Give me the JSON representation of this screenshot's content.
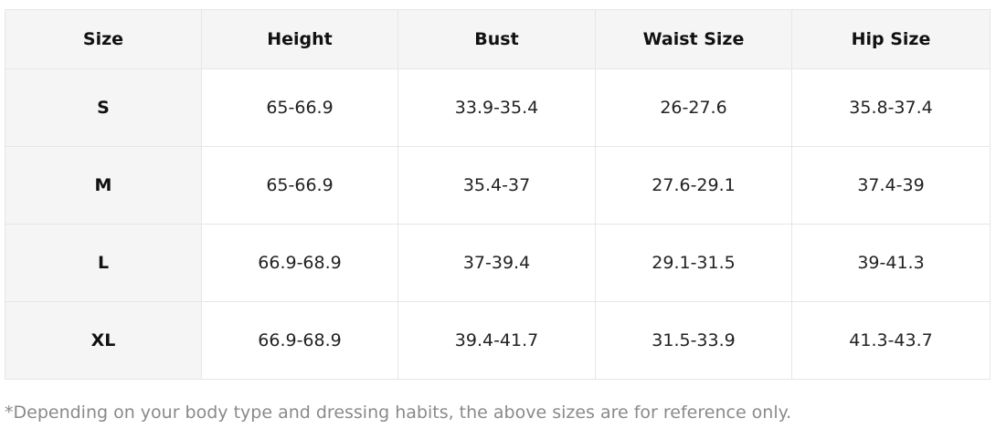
{
  "table": {
    "headers": [
      "Size",
      "Height",
      "Bust",
      "Waist Size",
      "Hip Size"
    ],
    "rows": [
      [
        "S",
        "65-66.9",
        "33.9-35.4",
        "26-27.6",
        "35.8-37.4"
      ],
      [
        "M",
        "65-66.9",
        "35.4-37",
        "27.6-29.1",
        "37.4-39"
      ],
      [
        "L",
        "66.9-68.9",
        "37-39.4",
        "29.1-31.5",
        "39-41.3"
      ],
      [
        "XL",
        "66.9-68.9",
        "39.4-41.7",
        "31.5-33.9",
        "41.3-43.7"
      ]
    ]
  },
  "note": "*Depending on your body type and dressing habits, the above sizes are for reference only.",
  "colors": {
    "header_background": "#f5f5f5",
    "border": "#e6e6e6",
    "note_text": "#8a8a8a"
  }
}
